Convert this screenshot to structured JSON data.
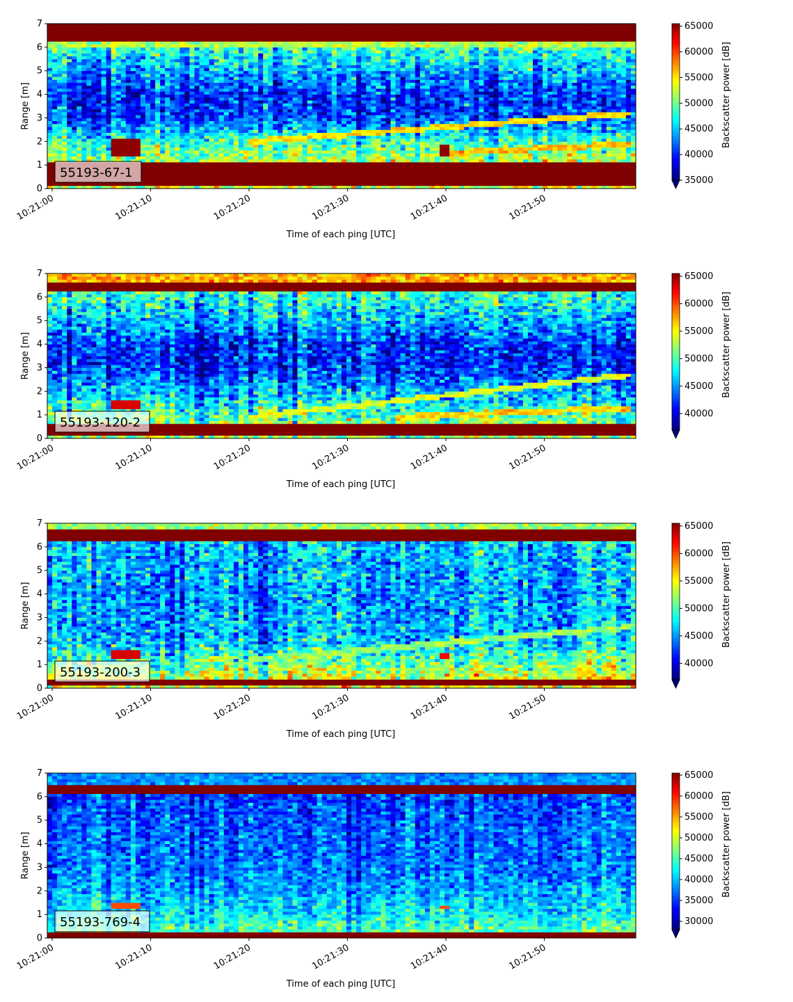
{
  "colors": {
    "colormap": "jet",
    "frame": "#000000",
    "label_box_fill": "rgba(255,255,255,0.65)"
  },
  "chart_data": [
    {
      "type": "heatmap",
      "label": "55193-67-1",
      "xlabel": "Time of each ping [UTC]",
      "ylabel": "Range [m]",
      "xlim": [
        "10:21:00",
        "10:21:59.5"
      ],
      "ylim": [
        0,
        7
      ],
      "x_tick_labels": [
        "10:21:00",
        "10:21:10",
        "10:21:20",
        "10:21:30",
        "10:21:40",
        "10:21:50"
      ],
      "y_tick_labels": [
        "0",
        "1",
        "2",
        "3",
        "4",
        "5",
        "6",
        "7"
      ],
      "colorbar": {
        "label": "Backscatter power [dB]",
        "ticks": [
          35000,
          40000,
          45000,
          50000,
          55000,
          60000,
          65000
        ],
        "range": [
          35000,
          65500
        ],
        "extend": "min"
      },
      "bands": [
        {
          "range": [
            0.15,
            1.1
          ],
          "level": 65500
        },
        {
          "range": [
            6.3,
            7.0
          ],
          "level": 65500
        },
        {
          "range": [
            6.0,
            6.3
          ],
          "level": 52000
        }
      ],
      "background": {
        "profile": [
          [
            0,
            52000
          ],
          [
            1.1,
            52000
          ],
          [
            2.0,
            48000
          ],
          [
            3.0,
            41000
          ],
          [
            4.0,
            40000
          ],
          [
            5.0,
            44000
          ],
          [
            6.0,
            48000
          ],
          [
            7.0,
            50000
          ]
        ]
      },
      "tracks": [
        {
          "t": [
            "10:21:20",
            "10:21:59"
          ],
          "range": [
            2.0,
            3.2
          ],
          "level": 55000
        },
        {
          "t": [
            "10:21:40",
            "10:21:59"
          ],
          "range": [
            1.5,
            1.9
          ],
          "level": 56000
        }
      ],
      "patches": [
        {
          "t": [
            "10:21:06",
            "10:21:09"
          ],
          "range": [
            1.4,
            2.1
          ],
          "level": 65000
        },
        {
          "t": [
            "10:21:39.5",
            "10:21:40.5"
          ],
          "range": [
            1.4,
            1.9
          ],
          "level": 65000
        }
      ]
    },
    {
      "type": "heatmap",
      "label": "55193-120-2",
      "xlabel": "Time of each ping [UTC]",
      "ylabel": "Range [m]",
      "xlim": [
        "10:21:00",
        "10:21:59.5"
      ],
      "ylim": [
        0,
        7
      ],
      "x_tick_labels": [
        "10:21:00",
        "10:21:10",
        "10:21:20",
        "10:21:30",
        "10:21:40",
        "10:21:50"
      ],
      "y_tick_labels": [
        "0",
        "1",
        "2",
        "3",
        "4",
        "5",
        "6",
        "7"
      ],
      "colorbar": {
        "label": "Backscatter power [dB]",
        "ticks": [
          40000,
          45000,
          50000,
          55000,
          60000,
          65000
        ],
        "range": [
          37000,
          65500
        ],
        "extend": "min"
      },
      "bands": [
        {
          "range": [
            0.1,
            0.6
          ],
          "level": 65500
        },
        {
          "range": [
            6.2,
            6.6
          ],
          "level": 65500
        },
        {
          "range": [
            6.6,
            7.0
          ],
          "level": 57000
        }
      ],
      "background": {
        "profile": [
          [
            0,
            52000
          ],
          [
            0.6,
            52000
          ],
          [
            1.5,
            48000
          ],
          [
            3.0,
            42000
          ],
          [
            4.0,
            42000
          ],
          [
            5.0,
            46000
          ],
          [
            6.0,
            49000
          ],
          [
            7.0,
            52000
          ]
        ]
      },
      "tracks": [
        {
          "t": [
            "10:21:20",
            "10:21:59"
          ],
          "range": [
            0.9,
            2.7
          ],
          "level": 54000
        },
        {
          "t": [
            "10:21:35",
            "10:21:59"
          ],
          "range": [
            0.9,
            1.3
          ],
          "level": 56000
        }
      ],
      "patches": [
        {
          "t": [
            "10:21:06",
            "10:21:09"
          ],
          "range": [
            1.3,
            1.6
          ],
          "level": 63000
        }
      ]
    },
    {
      "type": "heatmap",
      "label": "55193-200-3",
      "xlabel": "Time of each ping [UTC]",
      "ylabel": "Range [m]",
      "xlim": [
        "10:21:00",
        "10:21:59.5"
      ],
      "ylim": [
        0,
        7
      ],
      "x_tick_labels": [
        "10:21:00",
        "10:21:10",
        "10:21:20",
        "10:21:30",
        "10:21:40",
        "10:21:50"
      ],
      "y_tick_labels": [
        "0",
        "1",
        "2",
        "3",
        "4",
        "5",
        "6",
        "7"
      ],
      "colorbar": {
        "label": "Backscatter power [dB]",
        "ticks": [
          40000,
          45000,
          50000,
          55000,
          60000,
          65000
        ],
        "range": [
          37000,
          65500
        ],
        "extend": "min"
      },
      "bands": [
        {
          "range": [
            0.1,
            0.4
          ],
          "level": 65500
        },
        {
          "range": [
            6.2,
            6.7
          ],
          "level": 65500
        },
        {
          "range": [
            6.7,
            7.0
          ],
          "level": 52000
        }
      ],
      "background": {
        "profile": [
          [
            0,
            54000
          ],
          [
            0.4,
            54000
          ],
          [
            1.2,
            50000
          ],
          [
            2.0,
            46000
          ],
          [
            4.0,
            45000
          ],
          [
            6.0,
            46000
          ],
          [
            7.0,
            48000
          ]
        ]
      },
      "tracks": [
        {
          "t": [
            "10:21:20",
            "10:21:59"
          ],
          "range": [
            1.2,
            2.6
          ],
          "level": 52000
        }
      ],
      "patches": [
        {
          "t": [
            "10:21:06",
            "10:21:09"
          ],
          "range": [
            1.3,
            1.6
          ],
          "level": 63000
        },
        {
          "t": [
            "10:21:39.5",
            "10:21:40.5"
          ],
          "range": [
            1.3,
            1.5
          ],
          "level": 62000
        }
      ]
    },
    {
      "type": "heatmap",
      "label": "55193-769-4",
      "xlabel": "Time of each ping [UTC]",
      "ylabel": "Range [m]",
      "xlim": [
        "10:21:00",
        "10:21:59.5"
      ],
      "ylim": [
        0,
        7
      ],
      "x_tick_labels": [
        "10:21:00",
        "10:21:10",
        "10:21:20",
        "10:21:30",
        "10:21:40",
        "10:21:50"
      ],
      "y_tick_labels": [
        "0",
        "1",
        "2",
        "3",
        "4",
        "5",
        "6",
        "7"
      ],
      "colorbar": {
        "label": "Backscatter power [dB]",
        "ticks": [
          30000,
          35000,
          40000,
          45000,
          50000,
          55000,
          60000,
          65000
        ],
        "range": [
          28000,
          65500
        ],
        "extend": "min"
      },
      "bands": [
        {
          "range": [
            0.05,
            0.3
          ],
          "level": 65500
        },
        {
          "range": [
            6.15,
            6.5
          ],
          "level": 65500
        },
        {
          "range": [
            6.5,
            7.0
          ],
          "level": 38000
        }
      ],
      "background": {
        "profile": [
          [
            0,
            45000
          ],
          [
            0.3,
            45000
          ],
          [
            1.0,
            42000
          ],
          [
            2.0,
            39000
          ],
          [
            3.0,
            37000
          ],
          [
            5.0,
            36000
          ],
          [
            6.0,
            35000
          ],
          [
            7.0,
            36000
          ]
        ]
      },
      "tracks": [],
      "patches": [
        {
          "t": [
            "10:21:06",
            "10:21:09"
          ],
          "range": [
            1.3,
            1.5
          ],
          "level": 58000
        },
        {
          "t": [
            "10:21:39.5",
            "10:21:40.5"
          ],
          "range": [
            1.2,
            1.4
          ],
          "level": 58000
        }
      ]
    }
  ]
}
